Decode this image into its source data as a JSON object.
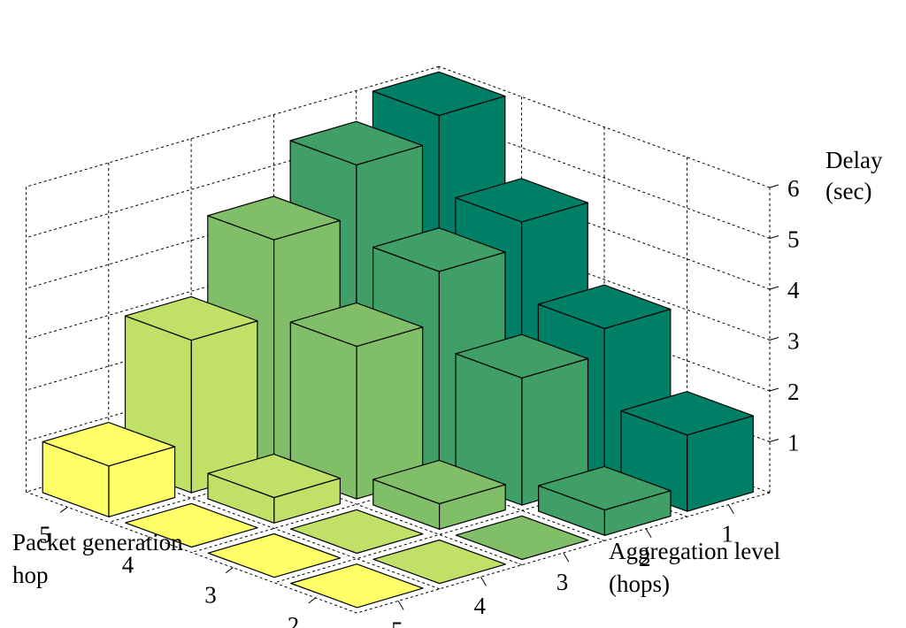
{
  "chart_data": {
    "type": "bar3d",
    "title": "",
    "xlabel": "Aggregation level (hops)",
    "xlabel_lines": [
      "Aggregation level",
      "(hops)"
    ],
    "ylabel": "Packet generation hop",
    "ylabel_lines": [
      "Packet generation",
      "hop"
    ],
    "zlabel": "Delay (sec)",
    "zlabel_lines": [
      "Delay",
      "(sec)"
    ],
    "aggregation_levels": [
      "1",
      "2",
      "3",
      "4",
      "5"
    ],
    "packet_generation_hops": [
      "5",
      "4",
      "3",
      "2"
    ],
    "zticks": [
      "1",
      "2",
      "3",
      "4",
      "5",
      "6"
    ],
    "zlim": [
      0,
      6
    ],
    "grid": true,
    "colors": {
      "level_1": "#007f67",
      "level_2": "#3f9f67",
      "level_3": "#80bf67",
      "level_4": "#c0e067",
      "level_5": "#ffff67"
    },
    "series": [
      {
        "name": "5",
        "values": [
          6.0,
          5.5,
          4.5,
          3.0,
          1.0
        ]
      },
      {
        "name": "4",
        "values": [
          4.5,
          4.0,
          3.0,
          0.5,
          0.0
        ]
      },
      {
        "name": "3",
        "values": [
          3.0,
          2.5,
          0.5,
          0.0,
          0.0
        ]
      },
      {
        "name": "2",
        "values": [
          1.5,
          0.5,
          0.0,
          0.0,
          0.0
        ]
      }
    ]
  }
}
